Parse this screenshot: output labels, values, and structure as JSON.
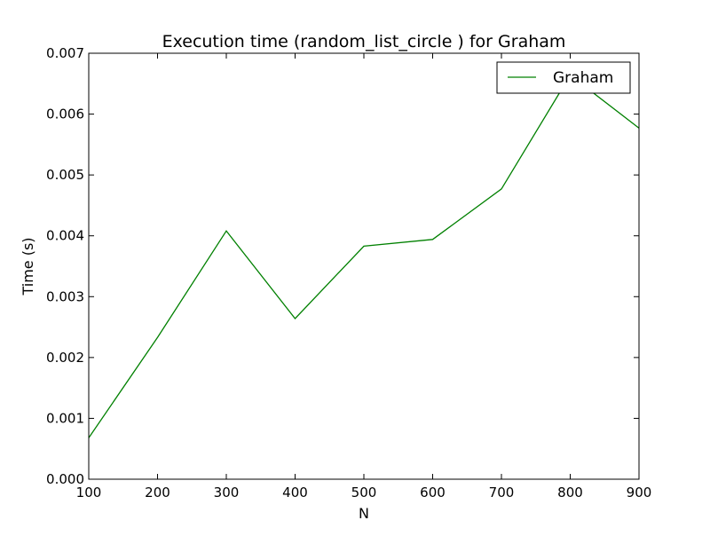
{
  "chart_data": {
    "type": "line",
    "title": "Execution time (random_list_circle ) for Graham",
    "xlabel": "N",
    "ylabel": "Time (s)",
    "xlim": [
      100,
      900
    ],
    "ylim": [
      0,
      0.007
    ],
    "xticks": [
      "100",
      "200",
      "300",
      "400",
      "500",
      "600",
      "700",
      "800",
      "900"
    ],
    "yticks": [
      "0.000",
      "0.001",
      "0.002",
      "0.003",
      "0.004",
      "0.005",
      "0.006",
      "0.007"
    ],
    "grid": false,
    "legend_position": "upper-right",
    "series": [
      {
        "name": "Graham",
        "color": "#008000",
        "x": [
          100,
          200,
          300,
          400,
          500,
          600,
          700,
          800,
          900
        ],
        "y": [
          0.00068,
          0.00233,
          0.00408,
          0.00264,
          0.00383,
          0.00394,
          0.00477,
          0.00664,
          0.00577
        ]
      }
    ]
  }
}
